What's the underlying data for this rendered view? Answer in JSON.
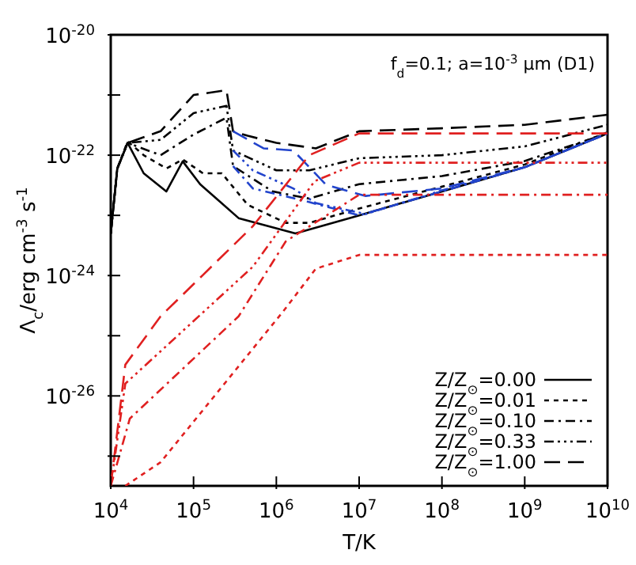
{
  "chart_data": {
    "type": "line",
    "annotations": [
      "f$_{d}$=0.1; a=10$^{-3}$ μm (D1)"
    ],
    "xlabel": "T/K",
    "ylabel": "Λ$_{c}$/erg cm$^{-3}$ s$^{-1}$",
    "log": "xy",
    "grid": false,
    "legend": "bottom right",
    "marker": "none",
    "xlim": [
      10000,
      10000000000
    ],
    "ylim": [
      3.2e-28,
      1e-20
    ],
    "xticks": [
      {
        "value": 10000,
        "label": "10$^{4}$"
      },
      {
        "value": 100000,
        "label": "10$^{5}$"
      },
      {
        "value": 1000000,
        "label": "10$^{6}$"
      },
      {
        "value": 10000000,
        "label": "10$^{7}$"
      },
      {
        "value": 100000000,
        "label": "10$^{8}$"
      },
      {
        "value": 1000000000,
        "label": "10$^{9}$"
      },
      {
        "value": 10000000000,
        "label": "10$^{10}$"
      }
    ],
    "yticks": [
      {
        "value": 1e-20,
        "label": "10$^{-20}$"
      },
      {
        "value": 1e-21,
        "label": null
      },
      {
        "value": 1e-22,
        "label": "10$^{-22}$"
      },
      {
        "value": 1e-23,
        "label": null
      },
      {
        "value": 1e-24,
        "label": "10$^{-24}$"
      },
      {
        "value": 1e-25,
        "label": null
      },
      {
        "value": 1e-26,
        "label": "10$^{-26}$"
      },
      {
        "value": 1e-27,
        "label": null
      }
    ],
    "series": [
      {
        "name": "Z/Z$_{⊙}$=0.00",
        "color": "#000000",
        "line_style": "solid",
        "x": [
          10000,
          12000,
          16000,
          25000,
          47000,
          74000,
          120000,
          350000,
          1700000,
          10000000,
          100000000,
          1000000000,
          10000000000
        ],
        "values": [
          5e-24,
          6e-23,
          1.6e-22,
          5e-23,
          2.5e-23,
          7.9e-23,
          3.3e-23,
          9e-24,
          5e-24,
          1e-23,
          2.5e-23,
          6.3e-23,
          2.3e-22
        ]
      },
      {
        "name": "Z/Z$_{⊙}$=0.01",
        "color": "#000000",
        "line_style": "dashed",
        "x": [
          10000,
          12000,
          16000,
          25000,
          47000,
          74000,
          130000,
          220000,
          450000,
          1300000,
          2500000,
          10000000,
          100000000,
          1000000000,
          10000000000
        ],
        "values": [
          5e-24,
          6e-23,
          1.7e-22,
          1e-22,
          6e-23,
          8.5e-23,
          5e-23,
          5e-23,
          1.5e-23,
          7.5e-24,
          7.5e-24,
          1.3e-23,
          3e-23,
          7e-23,
          2.4e-22
        ]
      },
      {
        "name": "Z/Z$_{⊙}$=0.10",
        "color": "#000000",
        "line_style": "dashdot",
        "x": [
          10000,
          12000,
          16000,
          40000,
          100000,
          250000,
          300000,
          900000,
          2500000,
          10000000,
          100000000,
          1000000000,
          10000000000
        ],
        "values": [
          5e-24,
          6e-23,
          1.6e-22,
          1e-22,
          2.2e-22,
          4.2e-22,
          6.6e-23,
          2.5e-23,
          1.9e-23,
          3.3e-23,
          4.5e-23,
          8e-23,
          2.3e-22
        ]
      },
      {
        "name": "Z/Z$_{⊙}$=0.33",
        "color": "#000000",
        "line_style": "dashdotdotdot",
        "x": [
          10000,
          12000,
          16000,
          40000,
          100000,
          250000,
          300000,
          1000000,
          2500000,
          10000000,
          100000000,
          1000000000,
          10000000000
        ],
        "values": [
          5e-24,
          6e-23,
          1.6e-22,
          1.8e-22,
          5e-22,
          6.6e-22,
          1.2e-22,
          5.6e-23,
          5.6e-23,
          8.9e-23,
          1e-22,
          1.4e-22,
          3.2e-22
        ]
      },
      {
        "name": "Z/Z$_{⊙}$=1.00",
        "color": "#000000",
        "line_style": "longdash",
        "x": [
          10000,
          12000,
          16000,
          40000,
          100000,
          250000,
          300000,
          450000,
          1000000,
          3000000,
          10000000,
          100000000,
          1000000000,
          10000000000
        ],
        "values": [
          5e-24,
          6e-23,
          1.6e-22,
          2.5e-22,
          1e-21,
          1.2e-21,
          2.5e-22,
          2.1e-22,
          1.6e-22,
          1.3e-22,
          2.5e-22,
          2.8e-22,
          3.2e-22,
          4.7e-22
        ]
      },
      {
        "color": "#2244cc",
        "line_style": "dashdot",
        "x": [
          300000,
          520000,
          2000000,
          10000000,
          100000000,
          1000000000,
          10000000000
        ],
        "values": [
          6.6e-23,
          2.8e-23,
          1.8e-23,
          1e-23,
          2.5e-23,
          6.3e-23,
          2.3e-22
        ]
      },
      {
        "color": "#2244cc",
        "line_style": "dashdotdotdot",
        "x": [
          300000,
          520000,
          1600000,
          3000000,
          12000000,
          100000000,
          1000000000,
          10000000000
        ],
        "values": [
          1.2e-22,
          5.6e-23,
          2.8e-23,
          1.6e-23,
          1.05e-23,
          2.6e-23,
          6.3e-23,
          2.3e-22
        ]
      },
      {
        "color": "#2244cc",
        "line_style": "longdash",
        "x": [
          300000,
          700000,
          1600000,
          4000000,
          12000000,
          100000000,
          1000000000,
          10000000000
        ],
        "values": [
          2.5e-22,
          1.3e-22,
          1.2e-22,
          3.2e-23,
          2.1e-23,
          2.8e-23,
          6.3e-23,
          2.3e-22
        ]
      },
      {
        "color": "#e02020",
        "line_style": "dashed",
        "x": [
          15000,
          40000,
          1200000,
          3000000,
          10000000,
          10000000000
        ],
        "values": [
          3.2e-28,
          7.9e-28,
          2.5e-25,
          1.3e-24,
          2.2e-24,
          2.2e-24
        ]
      },
      {
        "color": "#e02020",
        "line_style": "dashdot",
        "x": [
          10000,
          17000,
          350000,
          1300000,
          10000000,
          10000000000
        ],
        "values": [
          3.2e-28,
          4.2e-27,
          2.1e-25,
          3.7e-24,
          2.2e-23,
          2.2e-23
        ]
      },
      {
        "color": "#e02020",
        "line_style": "dashdotdotdot",
        "x": [
          10000,
          15000,
          520000,
          2900000,
          10000000,
          10000000000
        ],
        "values": [
          3.2e-28,
          1.6e-26,
          1.4e-24,
          3.7e-23,
          7.5e-23,
          7.5e-23
        ]
      },
      {
        "color": "#e02020",
        "line_style": "longdash",
        "x": [
          10000,
          15000,
          40000,
          520000,
          2500000,
          10000000,
          10000000000
        ],
        "values": [
          3.2e-28,
          3.3e-26,
          2.1e-25,
          6.6e-24,
          1e-22,
          2.3e-22,
          2.3e-22
        ]
      }
    ]
  }
}
